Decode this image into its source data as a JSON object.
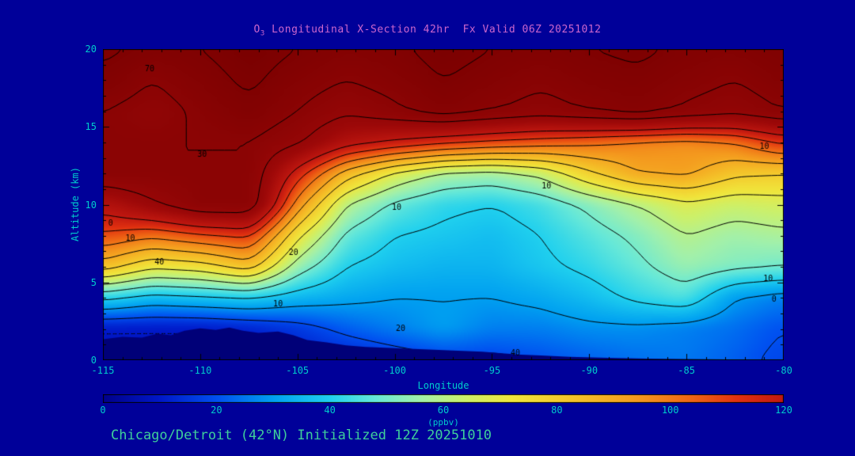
{
  "title": {
    "prefix": "O",
    "sub": "3",
    "rest": " Longitudinal X-Section 42hr  Fx Valid 06Z 20251012"
  },
  "caption": "Chicago/Detroit (42°N) Initialized 12Z 20251010",
  "axes": {
    "x_label": "Longitude",
    "y_label": "Altitude (km)",
    "x_ticks": [
      -115,
      -110,
      -105,
      -100,
      -95,
      -90,
      -85,
      -80
    ],
    "y_ticks": [
      0,
      5,
      10,
      15,
      20
    ],
    "x_range": [
      -115,
      -80
    ],
    "y_range": [
      0,
      20
    ]
  },
  "colorbar": {
    "units": "(ppbv)",
    "ticks": [
      0,
      20,
      40,
      60,
      80,
      100,
      120
    ],
    "range": [
      0,
      120
    ]
  },
  "colors": {
    "background": "#000099",
    "title": "#cc66cc",
    "axis_text": "#00cccc",
    "caption": "#3fcf9a",
    "contour": "#000000",
    "terrain": "#000078"
  },
  "chart_data": {
    "type": "heatmap",
    "title": "O3 Longitudinal X-Section 42hr Fx Valid 06Z 20251012",
    "xlabel": "Longitude",
    "ylabel": "Altitude (km)",
    "units": "ppbv",
    "x_lons": [
      -115,
      -112.5,
      -110,
      -107.5,
      -105,
      -102.5,
      -100,
      -97.5,
      -95,
      -92.5,
      -90,
      -87.5,
      -85,
      -82.5,
      -80
    ],
    "y_alts_km": [
      0,
      2,
      4,
      6,
      8,
      10,
      12,
      14,
      16,
      18,
      20
    ],
    "values_ppbv": [
      [
        8,
        8,
        8,
        8,
        10,
        12,
        15,
        18,
        18,
        20,
        22,
        24,
        25,
        22,
        18
      ],
      [
        10,
        10,
        10,
        12,
        16,
        22,
        26,
        30,
        26,
        26,
        28,
        28,
        26,
        24,
        20
      ],
      [
        42,
        36,
        38,
        40,
        35,
        32,
        30,
        30,
        30,
        32,
        36,
        42,
        46,
        30,
        26
      ],
      [
        85,
        72,
        75,
        85,
        55,
        40,
        36,
        34,
        34,
        38,
        42,
        48,
        55,
        52,
        50
      ],
      [
        108,
        102,
        108,
        112,
        72,
        48,
        40,
        38,
        36,
        40,
        46,
        52,
        60,
        56,
        58
      ],
      [
        125,
        138,
        150,
        150,
        95,
        60,
        48,
        42,
        40,
        44,
        52,
        60,
        68,
        64,
        66
      ],
      [
        150,
        150,
        150,
        150,
        115,
        85,
        68,
        58,
        56,
        62,
        78,
        90,
        92,
        82,
        80
      ],
      [
        150,
        150,
        150,
        150,
        142,
        125,
        118,
        112,
        108,
        105,
        102,
        98,
        96,
        100,
        112
      ],
      [
        150,
        145,
        152,
        158,
        150,
        142,
        148,
        155,
        150,
        146,
        150,
        154,
        148,
        144,
        150
      ],
      [
        158,
        150,
        156,
        162,
        155,
        150,
        154,
        160,
        156,
        152,
        156,
        158,
        154,
        150,
        156
      ],
      [
        162,
        158,
        160,
        165,
        160,
        156,
        158,
        164,
        160,
        158,
        160,
        162,
        158,
        156,
        160
      ]
    ],
    "contour_levels": [
      10,
      20,
      30,
      40,
      50,
      60,
      70,
      80,
      90,
      100,
      110,
      120,
      140,
      150,
      160
    ],
    "dashed_levels": [
      10
    ],
    "colormap_stops": [
      [
        0,
        "#00008b"
      ],
      [
        10,
        "#0018c8"
      ],
      [
        20,
        "#0050f0"
      ],
      [
        30,
        "#00a0f0"
      ],
      [
        40,
        "#20d0ee"
      ],
      [
        48,
        "#66e8d8"
      ],
      [
        56,
        "#a2f0aa"
      ],
      [
        64,
        "#ccf06a"
      ],
      [
        72,
        "#f0e63c"
      ],
      [
        84,
        "#f4c028"
      ],
      [
        94,
        "#f49a1e"
      ],
      [
        104,
        "#ee6414"
      ],
      [
        112,
        "#e03010"
      ],
      [
        120,
        "#c01810"
      ],
      [
        135,
        "#9c0808"
      ],
      [
        165,
        "#7a0000"
      ]
    ],
    "terrain_profile": [
      [
        -115,
        1.35
      ],
      [
        -114,
        1.5
      ],
      [
        -113,
        1.45
      ],
      [
        -112.2,
        1.7
      ],
      [
        -111.5,
        1.6
      ],
      [
        -110.8,
        1.9
      ],
      [
        -110,
        2.05
      ],
      [
        -109.2,
        1.95
      ],
      [
        -108.5,
        2.1
      ],
      [
        -107.8,
        1.9
      ],
      [
        -107,
        1.75
      ],
      [
        -106,
        1.85
      ],
      [
        -105.2,
        1.6
      ],
      [
        -104.5,
        1.3
      ],
      [
        -103.5,
        1.15
      ],
      [
        -102.5,
        0.95
      ],
      [
        -101.5,
        0.85
      ],
      [
        -100.5,
        0.8
      ],
      [
        -99.5,
        0.75
      ],
      [
        -98.5,
        0.7
      ],
      [
        -97.5,
        0.65
      ],
      [
        -96.5,
        0.6
      ],
      [
        -95.5,
        0.55
      ],
      [
        -94.5,
        0.45
      ],
      [
        -93.5,
        0.35
      ],
      [
        -92.5,
        0.3
      ],
      [
        -91,
        0.22
      ],
      [
        -89,
        0.15
      ],
      [
        -87,
        0.1
      ],
      [
        -85,
        0.08
      ],
      [
        -83,
        0.05
      ],
      [
        -80,
        0.05
      ]
    ],
    "contour_labels": [
      {
        "text": "70",
        "lon": -112.6,
        "alt": 18.7
      },
      {
        "text": "30",
        "lon": -109.9,
        "alt": 13.2
      },
      {
        "text": "0",
        "lon": -114.6,
        "alt": 8.8
      },
      {
        "text": "10",
        "lon": -113.6,
        "alt": 7.8
      },
      {
        "text": "40",
        "lon": -112.1,
        "alt": 6.3
      },
      {
        "text": "20",
        "lon": -105.2,
        "alt": 6.9
      },
      {
        "text": "10",
        "lon": -106.0,
        "alt": 3.6
      },
      {
        "text": "10",
        "lon": -99.9,
        "alt": 9.8
      },
      {
        "text": "10",
        "lon": -92.2,
        "alt": 11.2
      },
      {
        "text": "20",
        "lon": -99.7,
        "alt": 2.0
      },
      {
        "text": "40",
        "lon": -93.8,
        "alt": 0.45
      },
      {
        "text": "10",
        "lon": -81.0,
        "alt": 13.7
      },
      {
        "text": "10",
        "lon": -80.8,
        "alt": 5.2
      },
      {
        "text": "0",
        "lon": -80.5,
        "alt": 3.9
      }
    ]
  }
}
